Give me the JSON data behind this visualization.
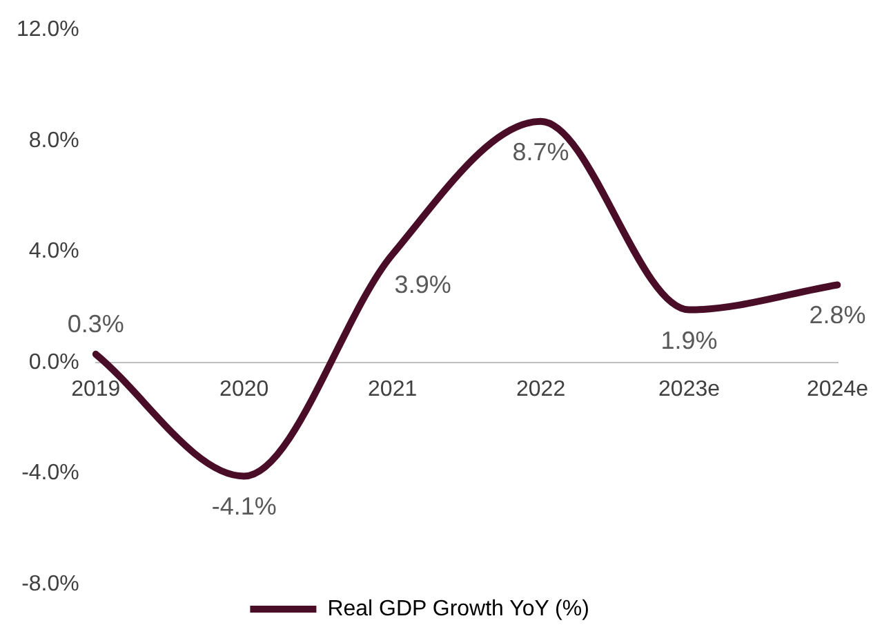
{
  "chart_data": {
    "type": "line",
    "categories": [
      "2019",
      "2020",
      "2021",
      "2022",
      "2023e",
      "2024e"
    ],
    "series": [
      {
        "name": "Real GDP Growth YoY (%)",
        "color": "#4a0d27",
        "values": [
          0.3,
          -4.1,
          3.9,
          8.7,
          1.9,
          2.8
        ],
        "value_labels": [
          "0.3%",
          "-4.1%",
          "3.9%",
          "8.7%",
          "1.9%",
          "2.8%"
        ]
      }
    ],
    "ylim": [
      -8,
      12
    ],
    "yticks": [
      {
        "value": -8,
        "label": "-8.0%"
      },
      {
        "value": -4,
        "label": "-4.0%"
      },
      {
        "value": 0,
        "label": "0.0%"
      },
      {
        "value": 4,
        "label": "4.0%"
      },
      {
        "value": 8,
        "label": "8.0%"
      },
      {
        "value": 12,
        "label": "12.0%"
      }
    ],
    "grid": false,
    "legend": "bottom",
    "marker": "none",
    "line_style": "solid"
  }
}
